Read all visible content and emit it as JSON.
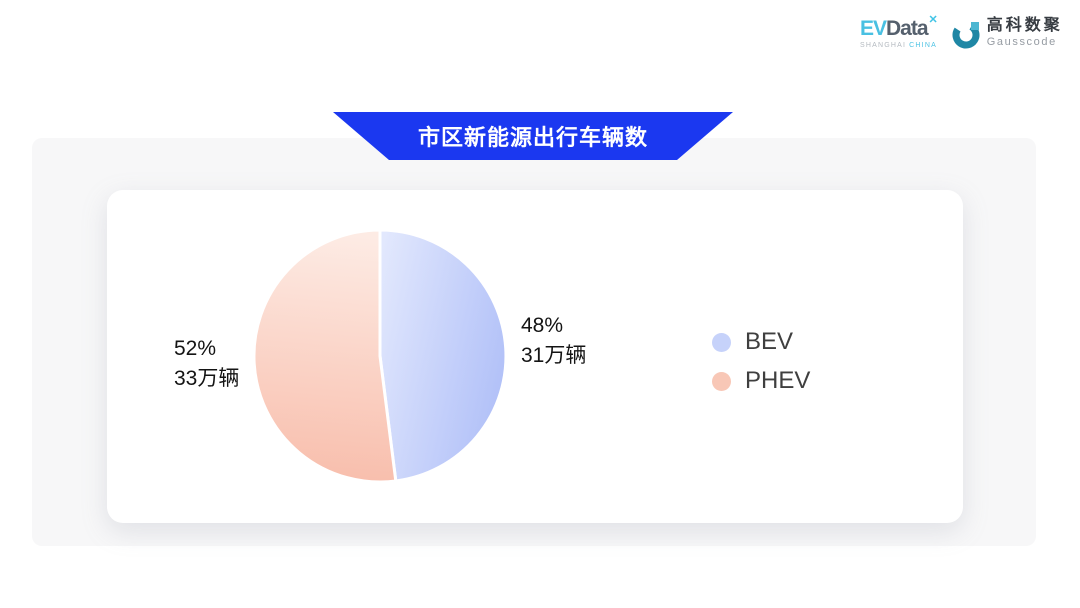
{
  "logos": {
    "evdata": {
      "ev": "EV",
      "data": "Data",
      "mark": "✕",
      "sub_left": "SHANGHAI",
      "sub_right": "CHINA"
    },
    "gausscode": {
      "cn": "高科数聚",
      "en": "Gausscode",
      "icon_color": "#1f87a5",
      "icon_accent": "#4db7d2"
    }
  },
  "banner": {
    "title": "市区新能源出行车辆数",
    "bg": "#1b38f0"
  },
  "chart_data": {
    "type": "pie",
    "title": "市区新能源出行车辆数",
    "unit": "万辆",
    "start_angle": "12-oclock, clockwise",
    "slices": [
      {
        "name": "BEV",
        "percent": 48,
        "value": 31,
        "percent_label": "48%",
        "value_label": "31万辆",
        "gradient": [
          "#e2e8fd",
          "#b2c1f8"
        ],
        "legend_color": "#c6d2fa"
      },
      {
        "name": "PHEV",
        "percent": 52,
        "value": 33,
        "percent_label": "52%",
        "value_label": "33万辆",
        "gradient": [
          "#fdebe4",
          "#f8bdab"
        ],
        "legend_color": "#f8c7b6"
      }
    ],
    "legend": {
      "position": "right",
      "labels": [
        "BEV",
        "PHEV"
      ]
    }
  }
}
